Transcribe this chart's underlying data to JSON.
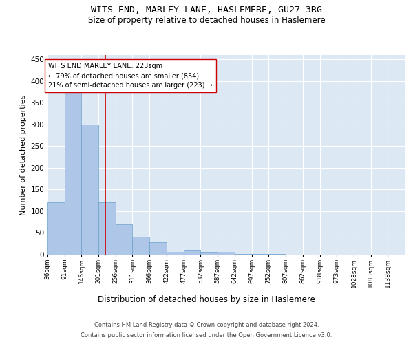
{
  "title1": "WITS END, MARLEY LANE, HASLEMERE, GU27 3RG",
  "title2": "Size of property relative to detached houses in Haslemere",
  "xlabel": "Distribution of detached houses by size in Haslemere",
  "ylabel": "Number of detached properties",
  "bin_labels": [
    "36sqm",
    "91sqm",
    "146sqm",
    "201sqm",
    "256sqm",
    "311sqm",
    "366sqm",
    "422sqm",
    "477sqm",
    "532sqm",
    "587sqm",
    "642sqm",
    "697sqm",
    "752sqm",
    "807sqm",
    "862sqm",
    "918sqm",
    "973sqm",
    "1028sqm",
    "1083sqm",
    "1138sqm"
  ],
  "bar_heights": [
    120,
    375,
    300,
    120,
    70,
    42,
    28,
    7,
    10,
    4,
    6,
    1,
    1,
    1,
    0,
    0,
    0,
    0,
    0,
    0,
    0
  ],
  "bin_edges": [
    36,
    91,
    146,
    201,
    256,
    311,
    366,
    422,
    477,
    532,
    587,
    642,
    697,
    752,
    807,
    862,
    918,
    973,
    1028,
    1083,
    1138
  ],
  "bar_color": "#aec6e8",
  "bar_edge_color": "#6a9fc8",
  "vline_x": 223,
  "vline_color": "#cc0000",
  "annotation_text": "WITS END MARLEY LANE: 223sqm\n← 79% of detached houses are smaller (854)\n21% of semi-detached houses are larger (223) →",
  "annotation_box_color": "#ffffff",
  "annotation_box_edge": "#cc0000",
  "ylim": [
    0,
    460
  ],
  "yticks": [
    0,
    50,
    100,
    150,
    200,
    250,
    300,
    350,
    400,
    450
  ],
  "footer1": "Contains HM Land Registry data © Crown copyright and database right 2024.",
  "footer2": "Contains public sector information licensed under the Open Government Licence v3.0.",
  "bg_color": "#dde8f5",
  "fig_bg_color": "#ffffff",
  "grid_color": "#ffffff",
  "annotation_fontsize": 7.0,
  "title1_fontsize": 9.5,
  "title2_fontsize": 8.5,
  "ylabel_fontsize": 8.0,
  "xlabel_fontsize": 8.5,
  "ytick_fontsize": 7.5,
  "xtick_fontsize": 6.5,
  "footer_fontsize": 6.0
}
